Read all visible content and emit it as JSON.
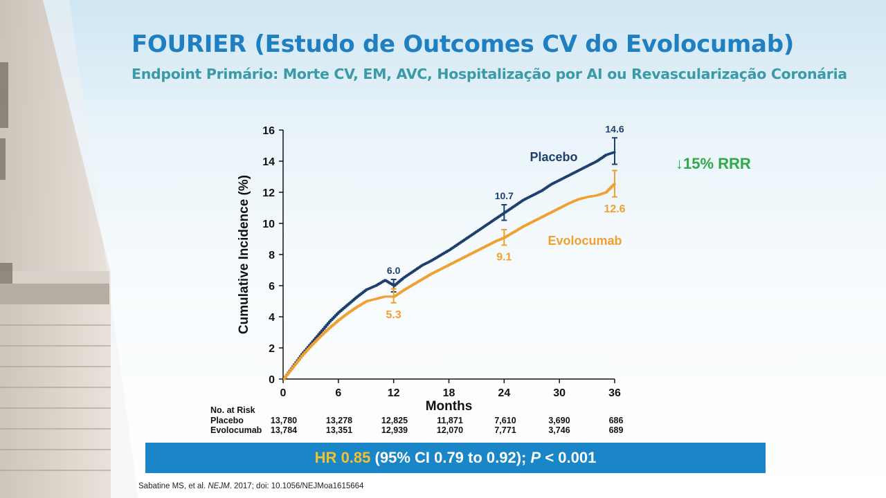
{
  "slide": {
    "title": "FOURIER (Estudo de Outcomes CV do Evolocumab)",
    "subtitle": "Endpoint Primário: Morte CV, EM, AVC, Hospitalização por AI ou Revascularização Coronária",
    "rrr": "15% RRR",
    "rrr_arrow": "↓",
    "hr_parts": {
      "hr_label": "HR",
      "hr_value": "0.85",
      "ci": "(95% CI 0.79 to 0.92);",
      "p_label": "P",
      "p_value": "< 0.001"
    },
    "citation": {
      "authors": "Sabatine MS, et al.",
      "journal": "NEJM",
      "rest": ". 2017; doi: 10.1056/NEJMoa1615664"
    }
  },
  "colors": {
    "placebo": "#1c3f6e",
    "evolocumab": "#f0a030",
    "title": "#1f7fc0",
    "subtitle": "#3a9aa8",
    "rrr": "#2eaa4a",
    "hr_bar": "#1a86c7",
    "hr_highlight": "#f2c230"
  },
  "chart_data": {
    "type": "line",
    "title": "",
    "xlabel": "Months",
    "ylabel": "Cumulative Incidence (%)",
    "xlim": [
      0,
      36
    ],
    "ylim": [
      0,
      16
    ],
    "x_ticks": [
      0,
      6,
      12,
      18,
      24,
      30,
      36
    ],
    "y_ticks": [
      0,
      2,
      4,
      6,
      8,
      10,
      12,
      14,
      16
    ],
    "grid": false,
    "series": [
      {
        "name": "Placebo",
        "color": "#1c3f6e",
        "x": [
          0,
          1,
          2,
          3,
          4,
          5,
          6,
          7,
          8,
          9,
          10,
          11,
          12,
          13,
          14,
          15,
          16,
          17,
          18,
          19,
          20,
          21,
          22,
          23,
          24,
          25,
          26,
          27,
          28,
          29,
          30,
          31,
          32,
          33,
          34,
          35,
          36
        ],
        "y": [
          0,
          0.8,
          1.6,
          2.3,
          3.0,
          3.7,
          4.3,
          4.8,
          5.3,
          5.75,
          6.0,
          6.35,
          6.0,
          6.5,
          6.9,
          7.3,
          7.6,
          7.95,
          8.3,
          8.7,
          9.1,
          9.5,
          9.9,
          10.3,
          10.7,
          11.1,
          11.5,
          11.8,
          12.1,
          12.5,
          12.8,
          13.1,
          13.4,
          13.7,
          14.0,
          14.4,
          14.6
        ]
      },
      {
        "name": "Evolocumab",
        "color": "#f0a030",
        "x": [
          0,
          1,
          2,
          3,
          4,
          5,
          6,
          7,
          8,
          9,
          10,
          11,
          12,
          13,
          14,
          15,
          16,
          17,
          18,
          19,
          20,
          21,
          22,
          23,
          24,
          25,
          26,
          27,
          28,
          29,
          30,
          31,
          32,
          33,
          34,
          35,
          36
        ],
        "y": [
          0,
          0.75,
          1.5,
          2.15,
          2.75,
          3.3,
          3.8,
          4.25,
          4.65,
          5.0,
          5.15,
          5.3,
          5.3,
          5.7,
          6.05,
          6.4,
          6.75,
          7.05,
          7.35,
          7.65,
          7.95,
          8.25,
          8.55,
          8.85,
          9.1,
          9.45,
          9.8,
          10.1,
          10.4,
          10.7,
          11.0,
          11.3,
          11.55,
          11.7,
          11.8,
          12.0,
          12.6
        ]
      }
    ],
    "error_bars": [
      {
        "series": "Placebo",
        "x": 12,
        "low": 5.6,
        "high": 6.4
      },
      {
        "series": "Placebo",
        "x": 24,
        "low": 10.2,
        "high": 11.2
      },
      {
        "series": "Placebo",
        "x": 36,
        "low": 13.8,
        "high": 15.5
      },
      {
        "series": "Evolocumab",
        "x": 12,
        "low": 4.9,
        "high": 5.8
      },
      {
        "series": "Evolocumab",
        "x": 24,
        "low": 8.6,
        "high": 9.6
      },
      {
        "series": "Evolocumab",
        "x": 36,
        "low": 11.7,
        "high": 13.4
      }
    ],
    "data_labels": [
      {
        "series": "Placebo",
        "x": 12,
        "y": 6.0,
        "text": "6.0"
      },
      {
        "series": "Placebo",
        "x": 24,
        "y": 10.7,
        "text": "10.7"
      },
      {
        "series": "Placebo",
        "x": 36,
        "y": 14.6,
        "text": "14.6"
      },
      {
        "series": "Evolocumab",
        "x": 12,
        "y": 5.3,
        "text": "5.3"
      },
      {
        "series": "Evolocumab",
        "x": 24,
        "y": 9.1,
        "text": "9.1"
      },
      {
        "series": "Evolocumab",
        "x": 36,
        "y": 12.6,
        "text": "12.6"
      }
    ],
    "series_labels": [
      {
        "series": "Placebo",
        "text": "Placebo"
      },
      {
        "series": "Evolocumab",
        "text": "Evolocumab"
      }
    ]
  },
  "risk_table": {
    "header": "No. at Risk",
    "rows": [
      {
        "label": "Placebo",
        "values": [
          "13,780",
          "13,278",
          "12,825",
          "11,871",
          "7,610",
          "3,690",
          "686"
        ]
      },
      {
        "label": "Evolocumab",
        "values": [
          "13,784",
          "13,351",
          "12,939",
          "12,070",
          "7,771",
          "3,746",
          "689"
        ]
      }
    ]
  }
}
